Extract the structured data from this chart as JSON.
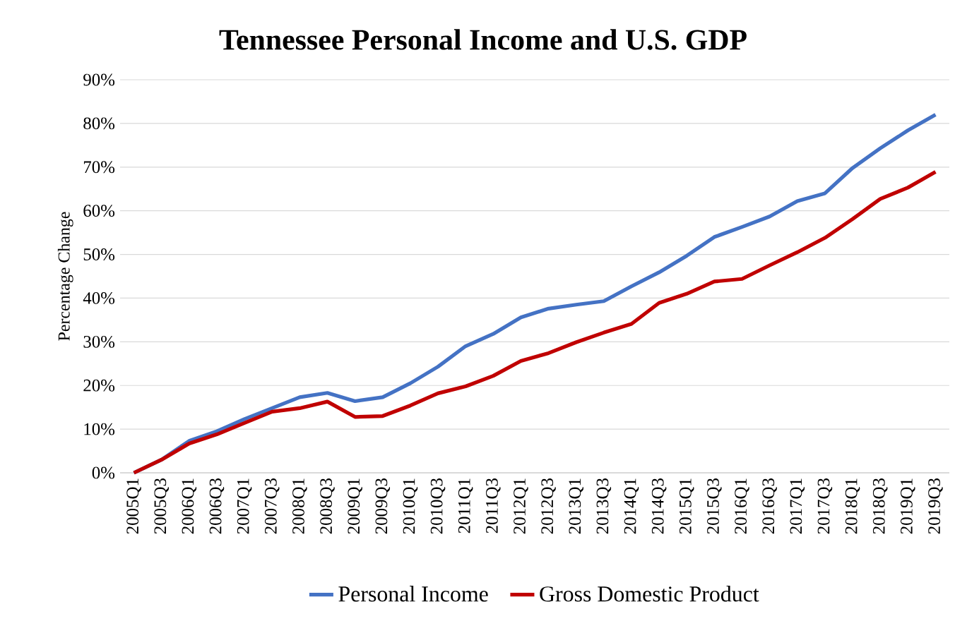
{
  "chart_data": {
    "type": "line",
    "title": "Tennessee Personal Income and U.S. GDP",
    "ylabel": "Percentage Change",
    "categories": [
      "2005Q1",
      "2005Q3",
      "2006Q1",
      "2006Q3",
      "2007Q1",
      "2007Q3",
      "2008Q1",
      "2008Q3",
      "2009Q1",
      "2009Q3",
      "2010Q1",
      "2010Q3",
      "2011Q1",
      "2011Q3",
      "2012Q1",
      "2012Q3",
      "2013Q1",
      "2013Q3",
      "2014Q1",
      "2014Q3",
      "2015Q1",
      "2015Q3",
      "2016Q1",
      "2016Q3",
      "2017Q1",
      "2017Q3",
      "2018Q1",
      "2018Q3",
      "2019Q1",
      "2019Q3"
    ],
    "series": [
      {
        "name": "Personal Income",
        "color": "#4472c4",
        "values": [
          0,
          3,
          7.3,
          9.5,
          12.3,
          14.8,
          17.3,
          18.3,
          16.4,
          17.3,
          20.5,
          24.3,
          29,
          31.8,
          35.6,
          37.6,
          38.5,
          39.3,
          42.7,
          45.9,
          49.7,
          54,
          56.3,
          58.7,
          62.2,
          64,
          69.8,
          74.3,
          78.4,
          82
        ]
      },
      {
        "name": "Gross Domestic Product",
        "color": "#c00000",
        "values": [
          0,
          3,
          6.7,
          8.8,
          11.4,
          14,
          14.8,
          16.3,
          12.8,
          13,
          15.4,
          18.2,
          19.8,
          22.2,
          25.6,
          27.4,
          29.9,
          32.1,
          34.1,
          38.9,
          41,
          43.8,
          44.4,
          47.5,
          50.5,
          53.8,
          58.1,
          62.7,
          65.3,
          68.9
        ]
      }
    ],
    "ylim": [
      0,
      90
    ],
    "yticks": [
      {
        "value": 0,
        "label": "0%"
      },
      {
        "value": 10,
        "label": "10%"
      },
      {
        "value": 20,
        "label": "20%"
      },
      {
        "value": 30,
        "label": "30%"
      },
      {
        "value": 40,
        "label": "40%"
      },
      {
        "value": 50,
        "label": "50%"
      },
      {
        "value": 60,
        "label": "60%"
      },
      {
        "value": 70,
        "label": "70%"
      },
      {
        "value": 80,
        "label": "80%"
      },
      {
        "value": 90,
        "label": "90%"
      }
    ],
    "grid": "y",
    "legend": "bottom",
    "marker": "none",
    "line_style": "solid"
  }
}
